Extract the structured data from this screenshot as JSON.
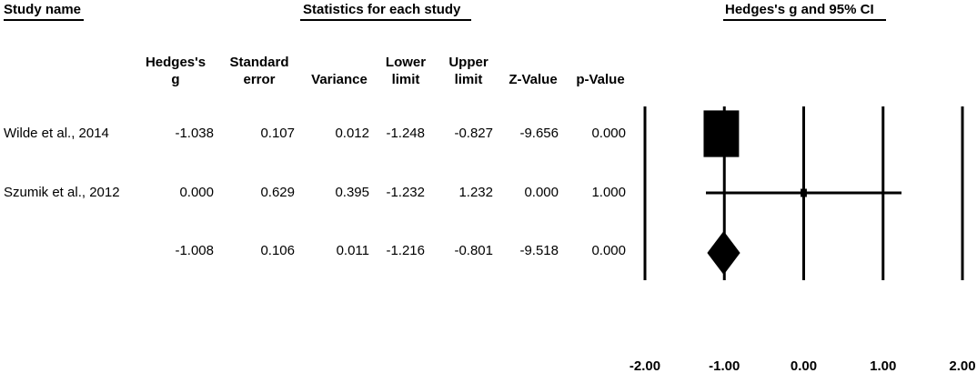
{
  "headers": {
    "study_name": "Study name",
    "statistics": "Statistics for each study",
    "ci": "Hedges's g and 95% CI"
  },
  "columns": [
    {
      "line1": "Hedges's",
      "line2": "g"
    },
    {
      "line1": "Standard",
      "line2": "error"
    },
    {
      "line1": "",
      "line2": "Variance"
    },
    {
      "line1": "Lower",
      "line2": "limit"
    },
    {
      "line1": "Upper",
      "line2": "limit"
    },
    {
      "line1": "",
      "line2": "Z-Value"
    },
    {
      "line1": "",
      "line2": "p-Value"
    }
  ],
  "rows": [
    {
      "name": "Wilde et al., 2014",
      "values": [
        "-1.038",
        "0.107",
        "0.012",
        "-1.248",
        "-0.827",
        "-9.656",
        "0.000"
      ]
    },
    {
      "name": "Szumik et al., 2012",
      "values": [
        "0.000",
        "0.629",
        "0.395",
        "-1.232",
        "1.232",
        "0.000",
        "1.000"
      ]
    },
    {
      "name": "",
      "values": [
        "-1.008",
        "0.106",
        "0.011",
        "-1.216",
        "-0.801",
        "-9.518",
        "0.000"
      ]
    }
  ],
  "chart_data": {
    "type": "forest",
    "x_ticks": [
      "-2.00",
      "-1.00",
      "0.00",
      "1.00",
      "2.00"
    ],
    "xlim": [
      -2,
      2
    ],
    "studies": [
      {
        "g": -1.038,
        "lower": -1.248,
        "upper": -0.827,
        "weight": 0.97
      },
      {
        "g": 0.0,
        "lower": -1.232,
        "upper": 1.232,
        "weight": 0.03
      }
    ],
    "summary": {
      "g": -1.008,
      "lower": -1.216,
      "upper": -0.801
    }
  }
}
